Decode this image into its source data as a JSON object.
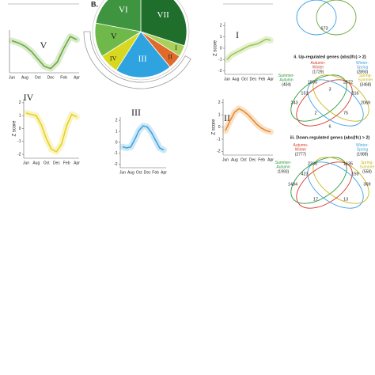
{
  "chart_data": [
    {
      "type": "line",
      "title": "V",
      "color": "#6aaa3a",
      "categories": [
        "Jun",
        null,
        "Aug",
        null,
        "Oct",
        null,
        "Dec",
        null,
        "Feb",
        null,
        "Apr"
      ],
      "values": [
        0.5,
        0.3,
        0,
        -0.5,
        -1.2,
        -1.9,
        -2.1,
        -1.5,
        -0.2,
        0.9,
        0.6
      ],
      "ylim": [
        -2.5,
        1.5
      ]
    },
    {
      "type": "line",
      "title": "IV",
      "color": "#e8d21c",
      "y_label": "Z score",
      "categories": [
        "Jun",
        null,
        "Aug",
        null,
        "Oct",
        null,
        "Dec",
        null,
        "Feb",
        null,
        "Apr"
      ],
      "values": [
        1.2,
        1.1,
        1.0,
        0.3,
        -0.8,
        -1.6,
        -1.8,
        -1.2,
        0.2,
        1.1,
        0.9
      ],
      "ylim": [
        -2.3,
        2.3
      ],
      "yticks": [
        2,
        1,
        0,
        -1,
        -2
      ]
    },
    {
      "type": "line",
      "title": "III",
      "color": "#3fa3de",
      "categories": [
        "Jun",
        null,
        "Aug",
        null,
        "Oct",
        null,
        "Dec",
        null,
        "Feb",
        null,
        "Apr"
      ],
      "values": [
        -0.4,
        -0.5,
        -0.4,
        0.3,
        1.1,
        1.5,
        1.4,
        0.9,
        0.2,
        -0.5,
        -0.7
      ],
      "ylim": [
        -2.3,
        2.3
      ],
      "yticks": [
        2,
        1,
        0,
        -1,
        -2
      ]
    },
    {
      "type": "line",
      "title": "I",
      "color": "#9bc850",
      "y_label": "Z score",
      "categories": [
        "Jun",
        null,
        "Aug",
        null,
        "Oct",
        null,
        "Dec",
        null,
        "Feb",
        null,
        "Apr"
      ],
      "values": [
        -1.0,
        -0.6,
        -0.4,
        -0.2,
        0,
        0.2,
        0.3,
        0.4,
        0.6,
        0.8,
        0.7
      ],
      "ylim": [
        -2.3,
        2.3
      ],
      "yticks": [
        2,
        1,
        0,
        -1,
        -2
      ]
    },
    {
      "type": "line",
      "title": "II",
      "color": "#e88a2a",
      "y_label": "Z score",
      "categories": [
        "Jun",
        null,
        "Aug",
        null,
        "Oct",
        null,
        "Dec",
        null,
        "Feb",
        null,
        "Apr"
      ],
      "values": [
        -0.3,
        0.5,
        1.2,
        1.5,
        1.3,
        1.0,
        0.6,
        0.2,
        -0.1,
        -0.3,
        -0.4
      ],
      "ylim": [
        -2.3,
        2.3
      ],
      "yticks": [
        2,
        1,
        0,
        -1,
        -2
      ]
    },
    {
      "type": "pie",
      "panel_label": "B.",
      "categories": [
        "VII",
        "I",
        "II",
        "III",
        "IV",
        "V",
        "VI"
      ],
      "values": [
        30,
        4,
        5,
        20,
        7,
        12,
        22
      ],
      "colors": [
        "#1f6e2c",
        "#a8d05a",
        "#e06a2a",
        "#2ea3e0",
        "#d8d820",
        "#6fb84a",
        "#3f9440"
      ]
    }
  ],
  "venn_top": {
    "values": [
      "673"
    ]
  },
  "venn_up": {
    "title": "ii. Up-regulated genes (abs(lfc) > 2)",
    "sets": [
      {
        "name": "Autumn-\nWinter",
        "size": "(1729)"
      },
      {
        "name": "Winter-\nSpring",
        "size": "(2893)"
      },
      {
        "name": "Summer-\nAutumn",
        "size": "(404)"
      },
      {
        "name": "Spring-\nSummer",
        "size": "(3468)"
      }
    ],
    "values": [
      "1500",
      "2572",
      "3",
      "151",
      "316",
      "243",
      "2069",
      "2",
      "75",
      "6"
    ]
  },
  "venn_down": {
    "title": "iii. Down-regulated genes (abs(lfc) > 2)",
    "sets": [
      {
        "name": "Autumn-\nWinter",
        "size": "(2777)"
      },
      {
        "name": "Winter-\nSpring",
        "size": "(1988)"
      },
      {
        "name": "Summer-\nAutumn",
        "size": "(1993)"
      },
      {
        "name": "Spring-\nSummer",
        "size": "(558)"
      }
    ],
    "values": [
      "2336",
      "1635",
      "423",
      "159",
      "1484",
      "369",
      "17",
      "13"
    ]
  }
}
